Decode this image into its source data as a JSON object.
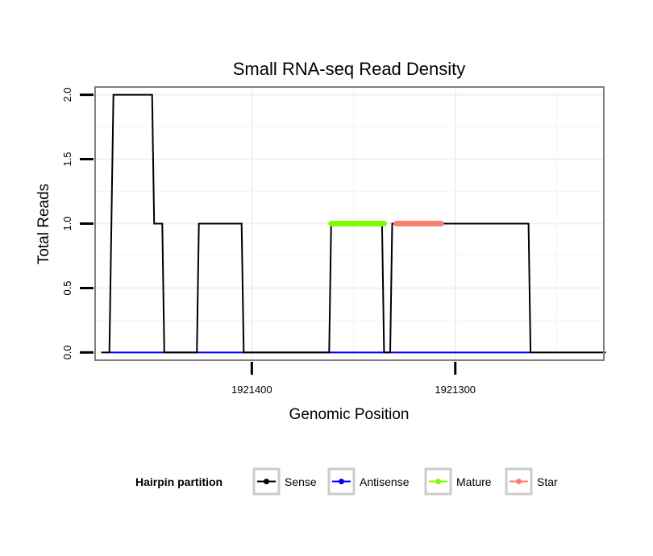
{
  "chart_data": {
    "type": "line",
    "title": "Small RNA-seq Read Density",
    "xlabel": "Genomic Position",
    "ylabel": "Total Reads",
    "x_reversed": true,
    "xlim": [
      1921477,
      1921227
    ],
    "ylim": [
      -0.06,
      2.06
    ],
    "yticks": [
      0.0,
      0.5,
      1.0,
      1.5,
      2.0
    ],
    "ytick_labels": [
      "0.0",
      "0.5",
      "1.0",
      "1.5",
      "2.0"
    ],
    "xticks": [
      1921400,
      1921300
    ],
    "xtick_labels": [
      "1921400",
      "1921300"
    ],
    "grid": true,
    "legend": {
      "title": "Hairpin partition",
      "position": "bottom",
      "entries": [
        {
          "name": "Sense",
          "color": "#000000"
        },
        {
          "name": "Antisense",
          "color": "#0000ff"
        },
        {
          "name": "Mature",
          "color": "#7cfc00"
        },
        {
          "name": "Star",
          "color": "#fa8072"
        }
      ]
    },
    "series": [
      {
        "name": "Sense",
        "color": "#000000",
        "x": [
          1921474,
          1921470,
          1921468,
          1921449,
          1921448,
          1921444,
          1921443,
          1921427,
          1921426,
          1921405,
          1921404,
          1921383,
          1921382,
          1921362,
          1921361,
          1921336,
          1921335,
          1921332,
          1921331,
          1921308,
          1921307,
          1921291,
          1921289,
          1921264,
          1921263,
          1921226
        ],
        "y": [
          0,
          0,
          2,
          2,
          1,
          1,
          0,
          0,
          1,
          1,
          0,
          0,
          0,
          0,
          1,
          1,
          0,
          0,
          1,
          1,
          1,
          1,
          1,
          1,
          0,
          0
        ]
      },
      {
        "name": "Antisense",
        "color": "#0000ff",
        "x": [
          1921470,
          1921442,
          1921426,
          1921404,
          1921362,
          1921332,
          1921331,
          1921263
        ],
        "y": [
          0,
          0,
          0,
          0,
          0,
          0,
          0,
          0
        ]
      },
      {
        "name": "Mature",
        "color": "#7cfc00",
        "x": [
          1921361,
          1921335
        ],
        "y": [
          1,
          1
        ]
      },
      {
        "name": "Star",
        "color": "#fa8072",
        "x": [
          1921329,
          1921307
        ],
        "y": [
          1,
          1
        ]
      }
    ]
  }
}
